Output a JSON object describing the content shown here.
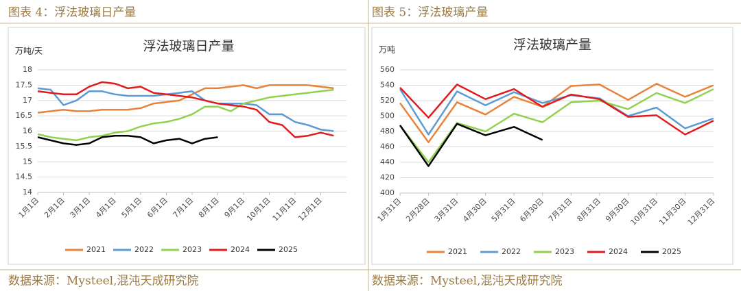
{
  "captions": [
    "图表 4：浮法玻璃日产量",
    "图表 5：浮法玻璃产量"
  ],
  "sources": [
    "数据来源：Mysteel,混沌天成研究院",
    "数据来源：Mysteel,混沌天成研究院"
  ],
  "chart_data": [
    {
      "type": "line",
      "title": "浮法玻璃日产量",
      "y_label": "万吨/天",
      "categories": [
        "1月1日",
        null,
        "2月1日",
        null,
        "3月1日",
        null,
        "4月1日",
        null,
        "5月1日",
        null,
        "6月1日",
        null,
        "7月1日",
        null,
        "8月1日",
        null,
        "9月1日",
        null,
        "10月1日",
        null,
        "11月1日",
        null,
        "12月1日",
        null
      ],
      "ylim": [
        14,
        18
      ],
      "yticks": [
        14,
        14.5,
        15,
        15.5,
        16,
        16.5,
        17,
        17.5,
        18
      ],
      "grid": true,
      "series": [
        {
          "name": "2021",
          "color": "#e8823a",
          "values": [
            16.6,
            16.65,
            16.7,
            16.65,
            16.65,
            16.7,
            16.7,
            16.7,
            16.75,
            16.9,
            16.95,
            17.0,
            17.2,
            17.4,
            17.4,
            17.45,
            17.5,
            17.4,
            17.5,
            17.5,
            17.5,
            17.5,
            17.45,
            17.4
          ]
        },
        {
          "name": "2022",
          "color": "#5b9bd5",
          "values": [
            17.4,
            17.35,
            16.85,
            17.0,
            17.3,
            17.3,
            17.2,
            17.15,
            17.15,
            17.15,
            17.2,
            17.25,
            17.3,
            17.0,
            16.9,
            16.9,
            16.9,
            16.85,
            16.55,
            16.55,
            16.3,
            16.2,
            16.05,
            16.0
          ]
        },
        {
          "name": "2023",
          "color": "#92d050",
          "values": [
            15.9,
            15.8,
            15.75,
            15.7,
            15.8,
            15.85,
            15.95,
            16.0,
            16.15,
            16.25,
            16.3,
            16.4,
            16.55,
            16.8,
            16.8,
            16.65,
            16.9,
            17.0,
            17.1,
            17.15,
            17.2,
            17.25,
            17.3,
            17.35
          ]
        },
        {
          "name": "2024",
          "color": "#e31a1c",
          "values": [
            17.3,
            17.25,
            17.2,
            17.2,
            17.45,
            17.6,
            17.55,
            17.4,
            17.45,
            17.25,
            17.2,
            17.15,
            17.1,
            17.0,
            16.9,
            16.85,
            16.8,
            16.7,
            16.3,
            16.2,
            15.8,
            15.85,
            15.95,
            15.85
          ]
        },
        {
          "name": "2025",
          "color": "#000000",
          "values": [
            15.8,
            15.7,
            15.6,
            15.55,
            15.6,
            15.8,
            15.85,
            15.85,
            15.8,
            15.6,
            15.7,
            15.75,
            15.6,
            15.75,
            15.8,
            null,
            null,
            null,
            null,
            null,
            null,
            null,
            null,
            null
          ]
        }
      ]
    },
    {
      "type": "line",
      "title": "浮法玻璃产量",
      "y_label": "万吨",
      "categories": [
        "1月31日",
        "2月28日",
        "3月31日",
        "4月30日",
        "5月31日",
        "6月30日",
        "7月31日",
        "8月31日",
        "9月30日",
        "10月31日",
        "11月30日",
        "12月31日"
      ],
      "ylim": [
        400,
        560
      ],
      "yticks": [
        400,
        420,
        440,
        460,
        480,
        500,
        520,
        540,
        560
      ],
      "grid": true,
      "series": [
        {
          "name": "2021",
          "color": "#e8823a",
          "values": [
            517,
            466,
            518,
            502,
            525,
            512,
            539,
            541,
            521,
            542,
            525,
            540
          ]
        },
        {
          "name": "2022",
          "color": "#5b9bd5",
          "values": [
            535,
            476,
            532,
            514,
            531,
            517,
            527,
            523,
            500,
            511,
            484,
            497
          ]
        },
        {
          "name": "2023",
          "color": "#92d050",
          "values": [
            488,
            440,
            491,
            480,
            503,
            492,
            518,
            520,
            509,
            530,
            517,
            535
          ]
        },
        {
          "name": "2024",
          "color": "#e31a1c",
          "values": [
            537,
            498,
            541,
            522,
            535,
            512,
            528,
            522,
            499,
            501,
            476,
            494
          ]
        },
        {
          "name": "2025",
          "color": "#000000",
          "values": [
            488,
            435,
            490,
            475,
            486,
            469,
            null,
            null,
            null,
            null,
            null,
            null
          ]
        }
      ]
    }
  ]
}
